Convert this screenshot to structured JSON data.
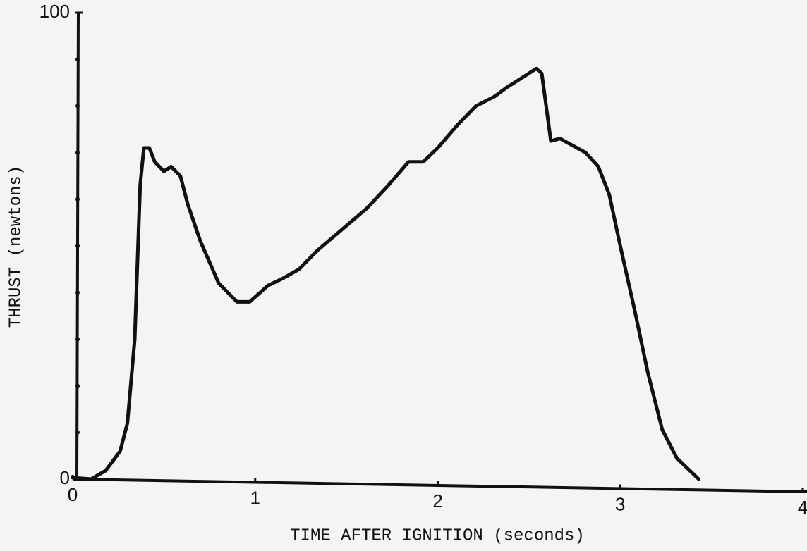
{
  "chart_data": {
    "type": "line",
    "xlabel": "TIME AFTER IGNITION (seconds)",
    "ylabel": "THRUST (newtons)",
    "xlim": [
      0,
      4
    ],
    "ylim": [
      0,
      100
    ],
    "xticks": [
      0,
      1,
      2,
      3,
      4
    ],
    "yticks": [
      0,
      100
    ],
    "yticks_minor": [
      10,
      20,
      30,
      40,
      50,
      60,
      70,
      80,
      90
    ],
    "color": "#111111",
    "series": [
      {
        "x": [
          0,
          0.1,
          0.18,
          0.26,
          0.3,
          0.34,
          0.37,
          0.39,
          0.42,
          0.45,
          0.5,
          0.54,
          0.59,
          0.63,
          0.7,
          0.8,
          0.9,
          0.97,
          1.07,
          1.15,
          1.24,
          1.34,
          1.46,
          1.61,
          1.73,
          1.84,
          1.92,
          2.0,
          2.11,
          2.21,
          2.31,
          2.38,
          2.46,
          2.54,
          2.57,
          2.62,
          2.67,
          2.81,
          2.88,
          2.94,
          3.0,
          3.08,
          3.15,
          3.23,
          3.31,
          3.43
        ],
        "values": [
          0.3,
          0,
          1.8,
          6,
          12,
          30,
          63,
          71,
          71,
          68,
          66,
          67,
          65,
          59,
          51,
          42,
          38,
          38,
          41.5,
          43,
          45,
          49,
          53,
          58,
          63,
          68,
          68,
          71,
          76,
          80,
          82,
          84,
          86,
          88,
          87,
          72.5,
          73,
          70,
          67,
          61,
          50,
          36,
          23,
          10.6,
          4.5,
          0
        ]
      }
    ]
  }
}
